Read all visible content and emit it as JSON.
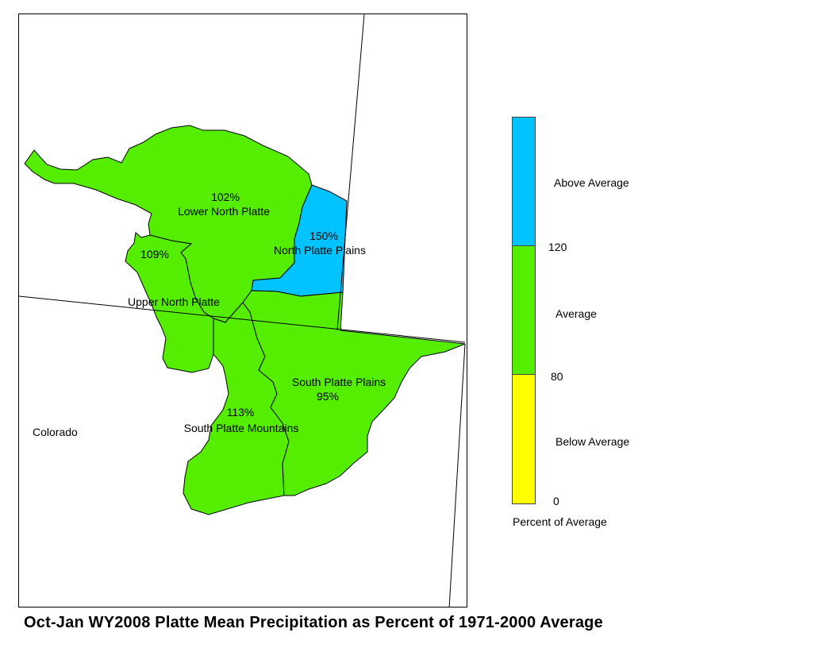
{
  "map": {
    "state_label": "Colorado",
    "basins": [
      {
        "name": "Lower North Platte",
        "percent": "102%",
        "category": "average"
      },
      {
        "name": "North Platte Plains",
        "percent": "150%",
        "category": "above"
      },
      {
        "name": "Upper North Platte",
        "percent": "109%",
        "category": "average"
      },
      {
        "name": "South Platte Plains",
        "percent": "95%",
        "category": "average"
      },
      {
        "name": "South Platte Mountains",
        "percent": "113%",
        "category": "average"
      }
    ]
  },
  "legend": {
    "title": "Percent of Average",
    "categories": [
      {
        "label": "Above Average",
        "color": "#00c3ff"
      },
      {
        "label": "Average",
        "color": "#55ee00"
      },
      {
        "label": "Below Average",
        "color": "#ffff00"
      }
    ],
    "ticks": [
      "120",
      "80",
      "0"
    ]
  },
  "title": "Oct-Jan WY2008 Platte Mean Precipitation as Percent of 1971-2000 Average"
}
